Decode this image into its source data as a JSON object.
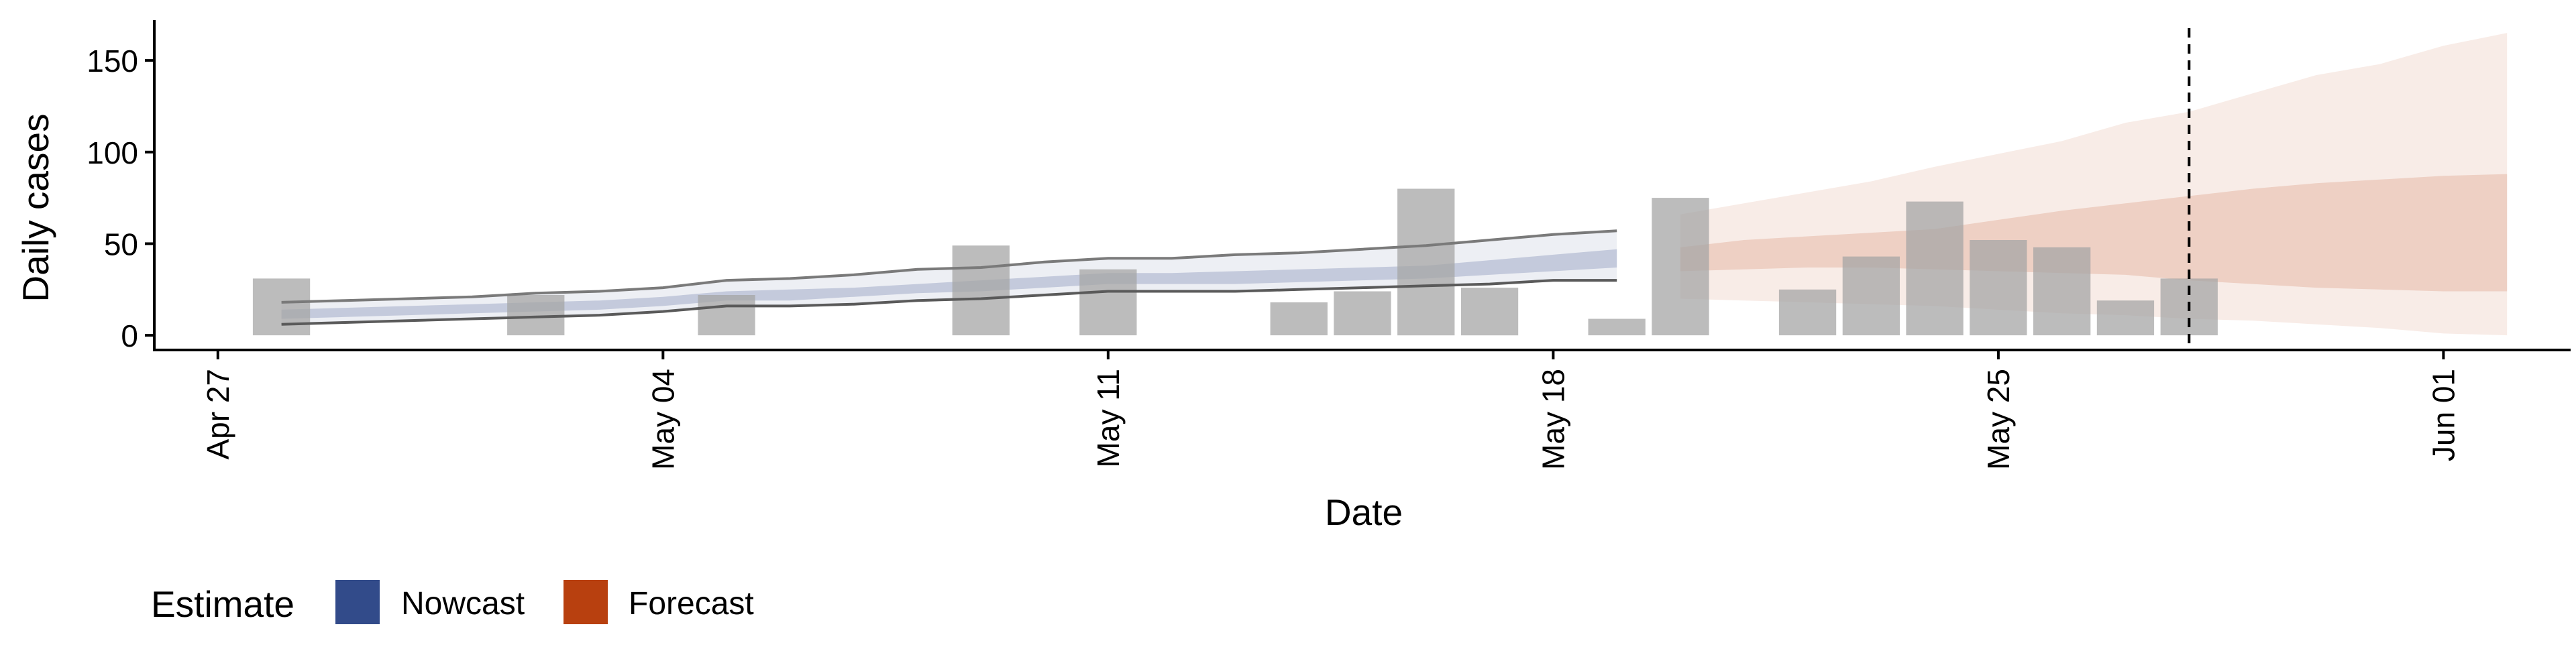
{
  "chart_data": {
    "type": "bar",
    "xlabel": "Date",
    "ylabel": "Daily cases",
    "ylim": [
      -8,
      172
    ],
    "x_range": [
      "2020-04-26",
      "2020-06-03"
    ],
    "y_ticks": [
      0,
      50,
      100,
      150
    ],
    "x_ticks": [
      {
        "date": "2020-04-27",
        "label": "Apr 27"
      },
      {
        "date": "2020-05-04",
        "label": "May 04"
      },
      {
        "date": "2020-05-11",
        "label": "May 11"
      },
      {
        "date": "2020-05-18",
        "label": "May 18"
      },
      {
        "date": "2020-05-25",
        "label": "May 25"
      },
      {
        "date": "2020-06-01",
        "label": "Jun 01"
      }
    ],
    "grid": false,
    "reference_line": {
      "date": "2020-05-28",
      "style": "dashed"
    },
    "observed": {
      "color": "#a6a6a6",
      "points": [
        {
          "date": "2020-04-28",
          "value": 31
        },
        {
          "date": "2020-05-02",
          "value": 22
        },
        {
          "date": "2020-05-05",
          "value": 22
        },
        {
          "date": "2020-05-09",
          "value": 49
        },
        {
          "date": "2020-05-11",
          "value": 36
        },
        {
          "date": "2020-05-14",
          "value": 18
        },
        {
          "date": "2020-05-15",
          "value": 24
        },
        {
          "date": "2020-05-16",
          "value": 80
        },
        {
          "date": "2020-05-17",
          "value": 26
        },
        {
          "date": "2020-05-19",
          "value": 9
        },
        {
          "date": "2020-05-20",
          "value": 75
        },
        {
          "date": "2020-05-22",
          "value": 25
        },
        {
          "date": "2020-05-23",
          "value": 43
        },
        {
          "date": "2020-05-24",
          "value": 73
        },
        {
          "date": "2020-05-25",
          "value": 52
        },
        {
          "date": "2020-05-26",
          "value": 48
        },
        {
          "date": "2020-05-27",
          "value": 19
        },
        {
          "date": "2020-05-28",
          "value": 31
        }
      ]
    },
    "series": [
      {
        "name": "Nowcast",
        "color": "#324b8a",
        "points": [
          {
            "date": "2020-04-28",
            "lo90": 6,
            "lo50": 9,
            "hi50": 14,
            "hi90": 18
          },
          {
            "date": "2020-04-29",
            "lo90": 7,
            "lo50": 10,
            "hi50": 15,
            "hi90": 19
          },
          {
            "date": "2020-04-30",
            "lo90": 8,
            "lo50": 11,
            "hi50": 16,
            "hi90": 20
          },
          {
            "date": "2020-05-01",
            "lo90": 9,
            "lo50": 12,
            "hi50": 17,
            "hi90": 21
          },
          {
            "date": "2020-05-02",
            "lo90": 10,
            "lo50": 13,
            "hi50": 18,
            "hi90": 23
          },
          {
            "date": "2020-05-03",
            "lo90": 11,
            "lo50": 14,
            "hi50": 19,
            "hi90": 24
          },
          {
            "date": "2020-05-04",
            "lo90": 13,
            "lo50": 16,
            "hi50": 21,
            "hi90": 26
          },
          {
            "date": "2020-05-05",
            "lo90": 16,
            "lo50": 19,
            "hi50": 24,
            "hi90": 30
          },
          {
            "date": "2020-05-06",
            "lo90": 16,
            "lo50": 19,
            "hi50": 25,
            "hi90": 31
          },
          {
            "date": "2020-05-07",
            "lo90": 17,
            "lo50": 21,
            "hi50": 26,
            "hi90": 33
          },
          {
            "date": "2020-05-08",
            "lo90": 19,
            "lo50": 23,
            "hi50": 28,
            "hi90": 36
          },
          {
            "date": "2020-05-09",
            "lo90": 20,
            "lo50": 24,
            "hi50": 30,
            "hi90": 37
          },
          {
            "date": "2020-05-10",
            "lo90": 22,
            "lo50": 26,
            "hi50": 32,
            "hi90": 40
          },
          {
            "date": "2020-05-11",
            "lo90": 24,
            "lo50": 28,
            "hi50": 34,
            "hi90": 42
          },
          {
            "date": "2020-05-12",
            "lo90": 24,
            "lo50": 28,
            "hi50": 34,
            "hi90": 42
          },
          {
            "date": "2020-05-13",
            "lo90": 24,
            "lo50": 28,
            "hi50": 35,
            "hi90": 44
          },
          {
            "date": "2020-05-14",
            "lo90": 25,
            "lo50": 29,
            "hi50": 36,
            "hi90": 45
          },
          {
            "date": "2020-05-15",
            "lo90": 26,
            "lo50": 30,
            "hi50": 37,
            "hi90": 47
          },
          {
            "date": "2020-05-16",
            "lo90": 27,
            "lo50": 31,
            "hi50": 38,
            "hi90": 49
          },
          {
            "date": "2020-05-17",
            "lo90": 28,
            "lo50": 33,
            "hi50": 41,
            "hi90": 52
          },
          {
            "date": "2020-05-18",
            "lo90": 30,
            "lo50": 35,
            "hi50": 44,
            "hi90": 55
          },
          {
            "date": "2020-05-19",
            "lo90": 30,
            "lo50": 37,
            "hi50": 47,
            "hi90": 57
          }
        ]
      },
      {
        "name": "Forecast",
        "color": "#b8400f",
        "points": [
          {
            "date": "2020-05-20",
            "lo90": 20,
            "lo50": 35,
            "hi50": 48,
            "hi90": 66
          },
          {
            "date": "2020-05-21",
            "lo90": 19,
            "lo50": 36,
            "hi50": 52,
            "hi90": 72
          },
          {
            "date": "2020-05-22",
            "lo90": 18,
            "lo50": 37,
            "hi50": 54,
            "hi90": 78
          },
          {
            "date": "2020-05-23",
            "lo90": 17,
            "lo50": 37,
            "hi50": 56,
            "hi90": 84
          },
          {
            "date": "2020-05-24",
            "lo90": 16,
            "lo50": 36,
            "hi50": 58,
            "hi90": 92
          },
          {
            "date": "2020-05-25",
            "lo90": 14,
            "lo50": 35,
            "hi50": 63,
            "hi90": 99
          },
          {
            "date": "2020-05-26",
            "lo90": 12,
            "lo50": 34,
            "hi50": 68,
            "hi90": 106
          },
          {
            "date": "2020-05-27",
            "lo90": 11,
            "lo50": 33,
            "hi50": 72,
            "hi90": 116
          },
          {
            "date": "2020-05-28",
            "lo90": 9,
            "lo50": 30,
            "hi50": 76,
            "hi90": 122
          },
          {
            "date": "2020-05-29",
            "lo90": 8,
            "lo50": 28,
            "hi50": 80,
            "hi90": 132
          },
          {
            "date": "2020-05-30",
            "lo90": 6,
            "lo50": 26,
            "hi50": 83,
            "hi90": 142
          },
          {
            "date": "2020-05-31",
            "lo90": 4,
            "lo50": 25,
            "hi50": 85,
            "hi90": 148
          },
          {
            "date": "2020-06-01",
            "lo90": 1,
            "lo50": 24,
            "hi50": 87,
            "hi90": 158
          },
          {
            "date": "2020-06-02",
            "lo90": 0,
            "lo50": 24,
            "hi50": 88,
            "hi90": 165
          }
        ]
      }
    ],
    "legend": {
      "title": "Estimate",
      "position": "bottom-left",
      "items": [
        {
          "label": "Nowcast",
          "color": "#324b8a"
        },
        {
          "label": "Forecast",
          "color": "#b8400f"
        }
      ]
    }
  }
}
